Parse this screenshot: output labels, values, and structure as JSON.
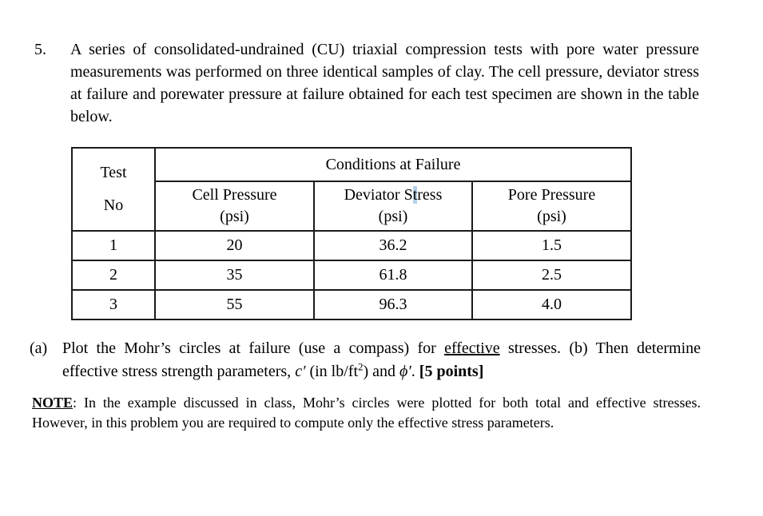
{
  "colors": {
    "background": "#ffffff",
    "text": "#000000",
    "table_border": "#1b1b1b",
    "stress_highlight": "#b3cfe9"
  },
  "problem": {
    "number": "5.",
    "statement": "A series of consolidated-undrained (CU) triaxial compression tests with pore water pressure measurements was performed on three identical samples of clay.  The cell pressure, deviator stress at failure and porewater pressure at failure obtained for each test specimen are shown in the table below."
  },
  "table": {
    "corner": {
      "line1": "Test",
      "line2": "No"
    },
    "group_header": "Conditions at Failure",
    "columns": [
      {
        "label": "Cell Pressure",
        "unit": "(psi)"
      },
      {
        "label_pre": "Deviator S",
        "label_highlight": "t",
        "label_post": "ress",
        "unit": "(psi)"
      },
      {
        "label": "Pore Pressure",
        "unit": "(psi)"
      }
    ],
    "rows": [
      [
        "1",
        "20",
        "36.2",
        "1.5"
      ],
      [
        "2",
        "35",
        "61.8",
        "2.5"
      ],
      [
        "3",
        "55",
        "96.3",
        "4.0"
      ]
    ]
  },
  "question": {
    "label_a": "(a)",
    "a_text": "Plot the Mohr’s circles at failure (use a compass) for ",
    "a_underlined": "effective",
    "a_after": " stresses.  ",
    "label_b": "(b)",
    "b_text_1": " Then determine effective stress strength parameters, ",
    "c_symbol": "c′",
    "b_text_2": " (in lb/ft",
    "ft_exponent": "2",
    "b_text_3": ") and ",
    "phi_symbol": "ϕ′",
    "b_text_4": ". ",
    "points": "[5 points]"
  },
  "note": {
    "label": "NOTE",
    "colon": ":  ",
    "text": "In the example discussed in class, Mohr’s circles were plotted for both total and effective stresses.  However, in this problem you are required to compute only the effective stress parameters."
  }
}
